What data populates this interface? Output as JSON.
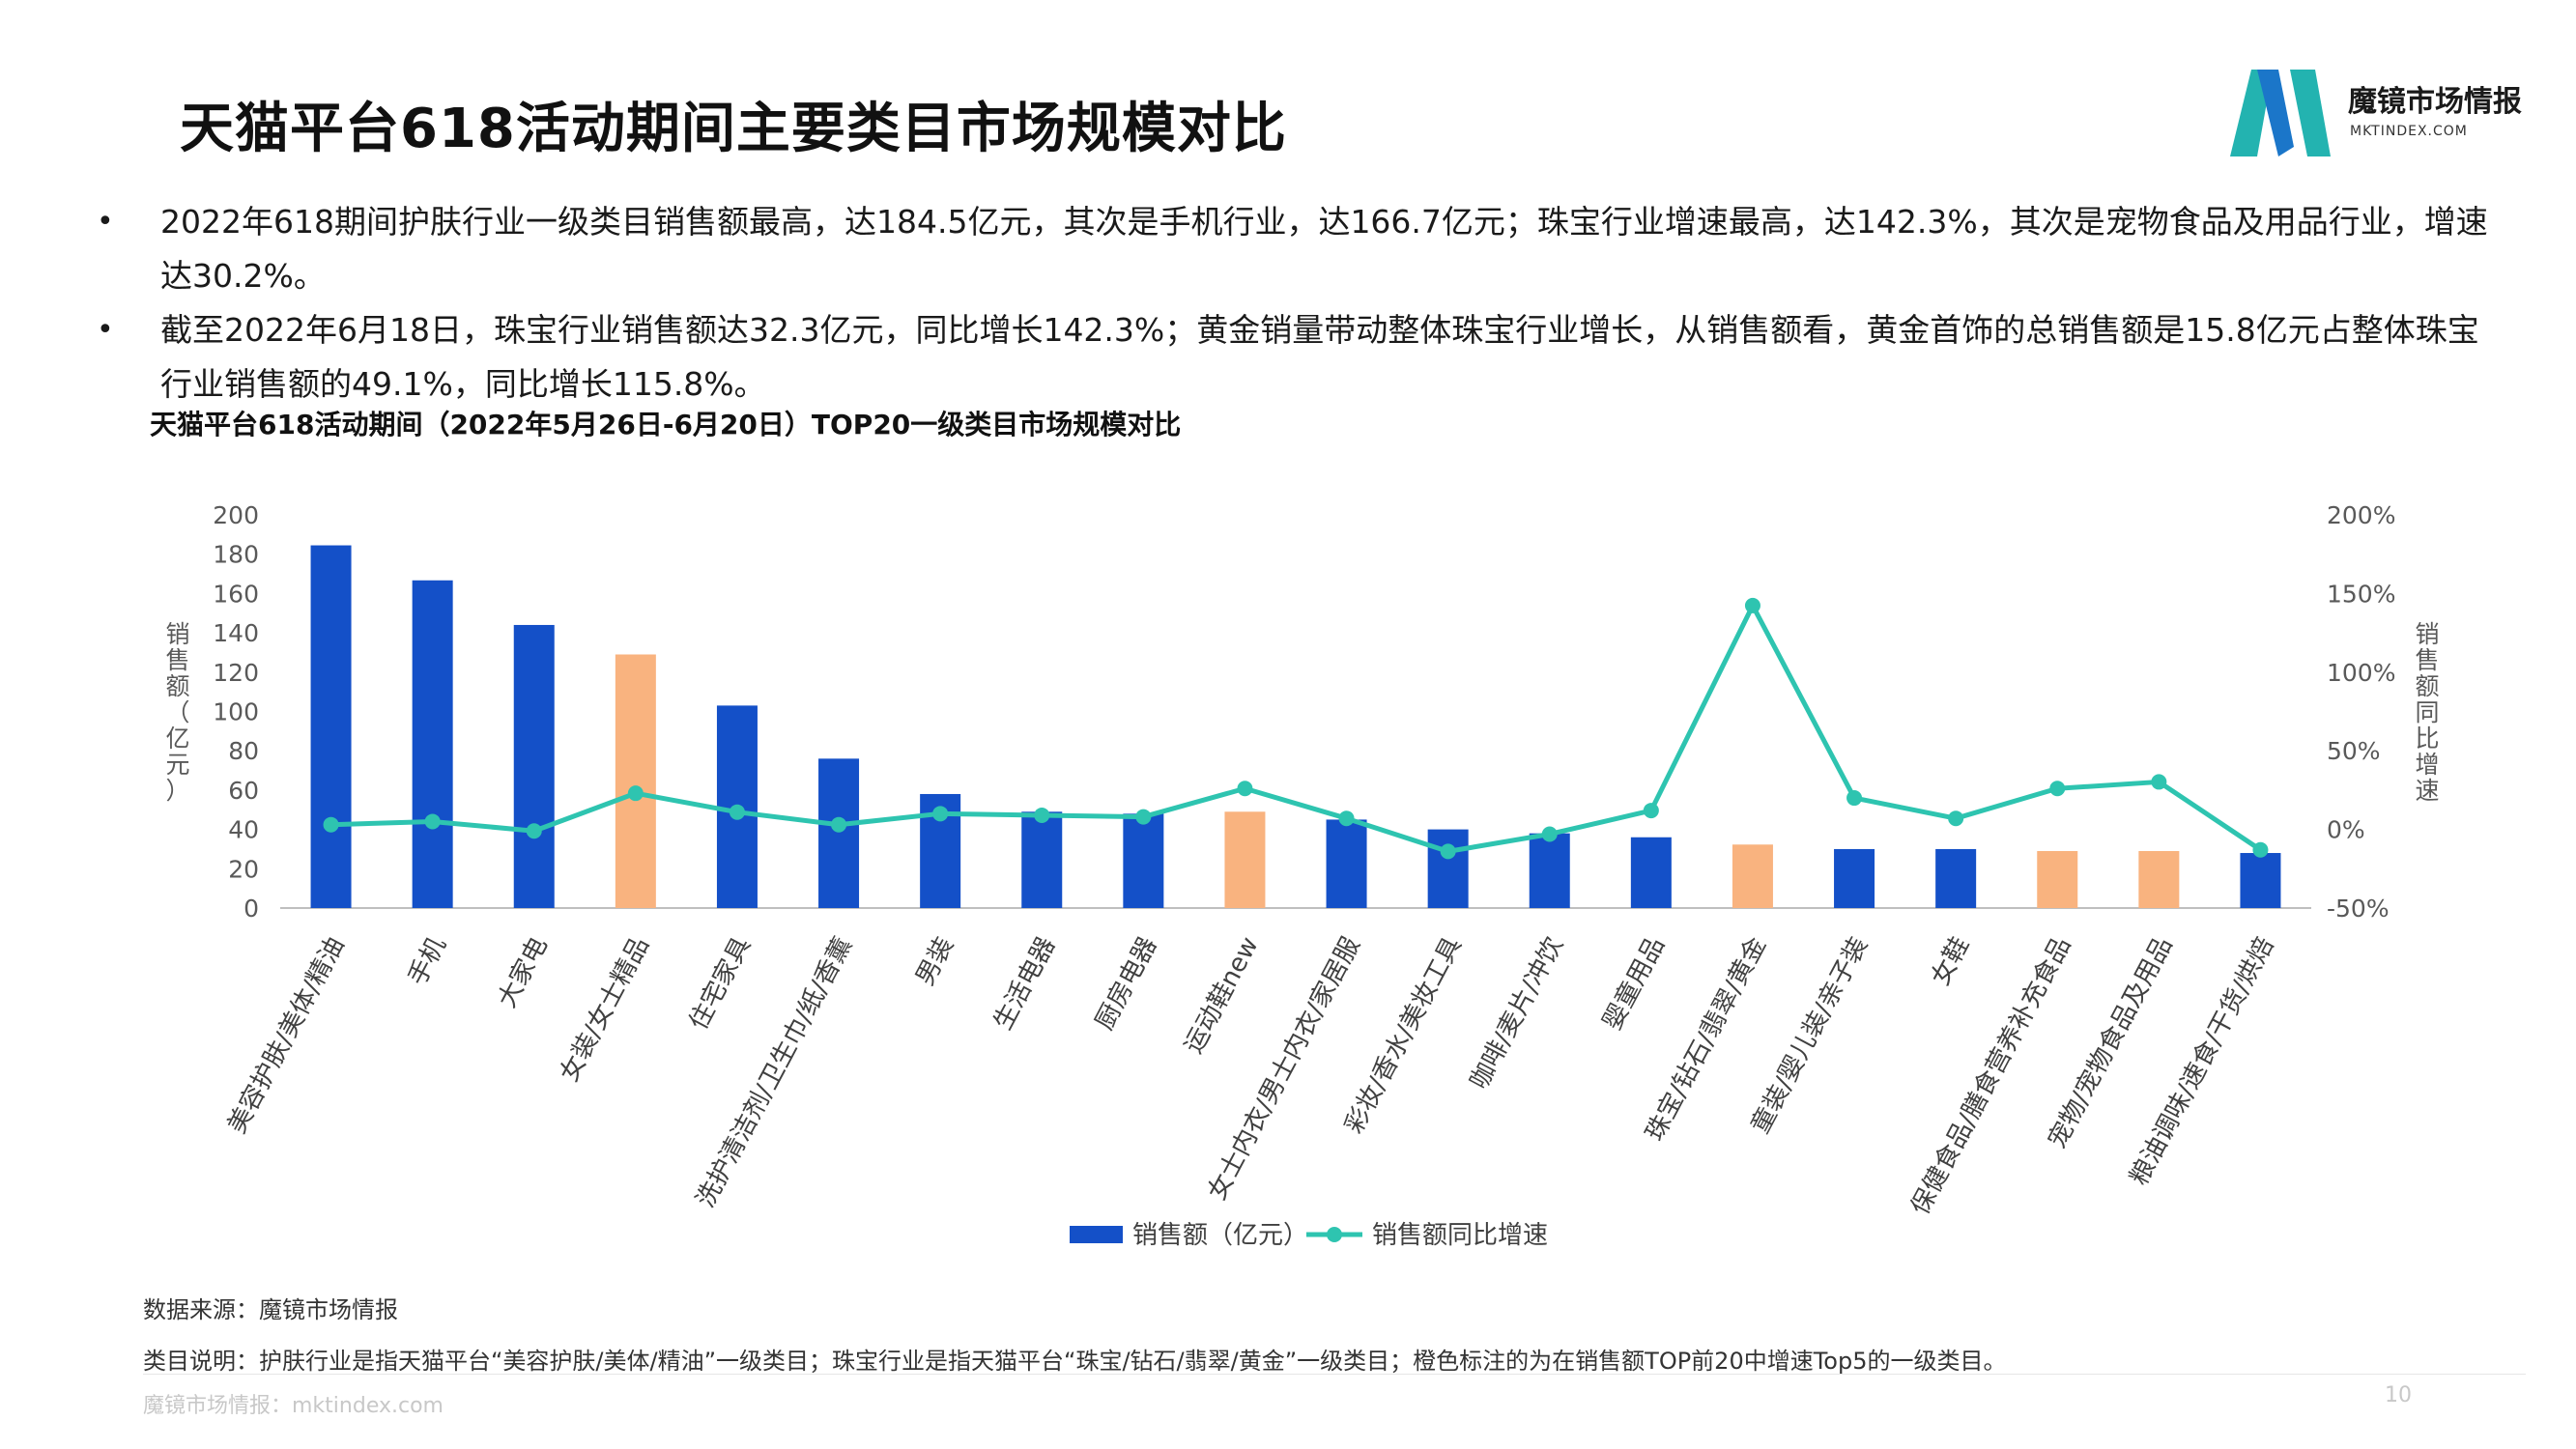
{
  "page": {
    "title": "天猫平台618活动期间主要类目市场规模对比",
    "logo_name": "魔镜市场情报",
    "logo_domain": "MKTINDEX.COM",
    "bullets": [
      "2022年618期间护肤行业一级类目销售额最高，达184.5亿元，其次是手机行业，达166.7亿元；珠宝行业增速最高，达142.3%，其次是宠物食品及用品行业，增速达30.2%。",
      "截至2022年6月18日，珠宝行业销售额达32.3亿元，同比增长142.3%；黄金销量带动整体珠宝行业增长，从销售额看，黄金首饰的总销售额是15.8亿元占整体珠宝行业销售额的49.1%，同比增长115.8%。"
    ],
    "bullet_symbol": "•",
    "source_note": "数据来源：魔镜市场情报",
    "category_note": "类目说明：护肤行业是指天猫平台“美容护肤/美体/精油”一级类目；珠宝行业是指天猫平台“珠宝/钻石/翡翠/黄金”一级类目；橙色标注的为在销售额TOP前20中增速Top5的一级类目。",
    "footer_site": "魔镜市场情报：mktindex.com",
    "page_number": "10"
  },
  "colors": {
    "bar_blue": "#1450C8",
    "bar_orange": "#F9B37F",
    "line_teal": "#2EC4B0",
    "axis_text": "#595959",
    "axis_line": "#bfbfbf",
    "logo_teal": "#23B3B0",
    "logo_blue": "#1B76C9"
  },
  "chart_data": {
    "type": "bar",
    "title": "天猫平台618活动期间（2022年5月26日-6月20日）TOP20一级类目市场规模对比",
    "ylabel": "销售额（亿元）",
    "y2label": "销售额同比增速",
    "ylim": [
      0,
      200
    ],
    "yticks": [
      "0",
      "20",
      "40",
      "60",
      "80",
      "100",
      "120",
      "140",
      "160",
      "180",
      "200"
    ],
    "y2lim": [
      -50,
      200
    ],
    "y2ticks": [
      "-50%",
      "0%",
      "50%",
      "100%",
      "150%",
      "200%"
    ],
    "grid": false,
    "legend_position": "bottom",
    "categories": [
      "美容护肤/美体/精油",
      "手机",
      "大家电",
      "女装/女士精品",
      "住宅家具",
      "洗护清洁剂/卫生巾/纸/香薰",
      "男装",
      "生活电器",
      "厨房电器",
      "运动鞋new",
      "女士内衣/男士内衣/家居服",
      "彩妆/香水/美妆工具",
      "咖啡/麦片/冲饮",
      "婴童用品",
      "珠宝/钻石/翡翠/黄金",
      "童装/婴儿装/亲子装",
      "女鞋",
      "保健食品/膳食营养补充食品",
      "宠物/宠物食品及用品",
      "粮油调味/速食/干货/烘焙"
    ],
    "highlight_top5_growth": [
      false,
      false,
      false,
      true,
      false,
      false,
      false,
      false,
      false,
      true,
      false,
      false,
      false,
      false,
      true,
      false,
      false,
      true,
      true,
      false
    ],
    "series": [
      {
        "name": "销售额（亿元）",
        "type": "bar",
        "axis": "left",
        "values": [
          184.5,
          166.7,
          144,
          129,
          103,
          76,
          58,
          49,
          48,
          49,
          45,
          40,
          38,
          36,
          32.3,
          30,
          30,
          29,
          29,
          28
        ]
      },
      {
        "name": "销售额同比增速",
        "type": "line",
        "axis": "right",
        "unit": "%",
        "values": [
          3,
          5,
          -1,
          23,
          11,
          3,
          10,
          9,
          8,
          26,
          7,
          -14,
          -3,
          12,
          142.3,
          20,
          7,
          26,
          30.2,
          -13
        ]
      }
    ]
  }
}
